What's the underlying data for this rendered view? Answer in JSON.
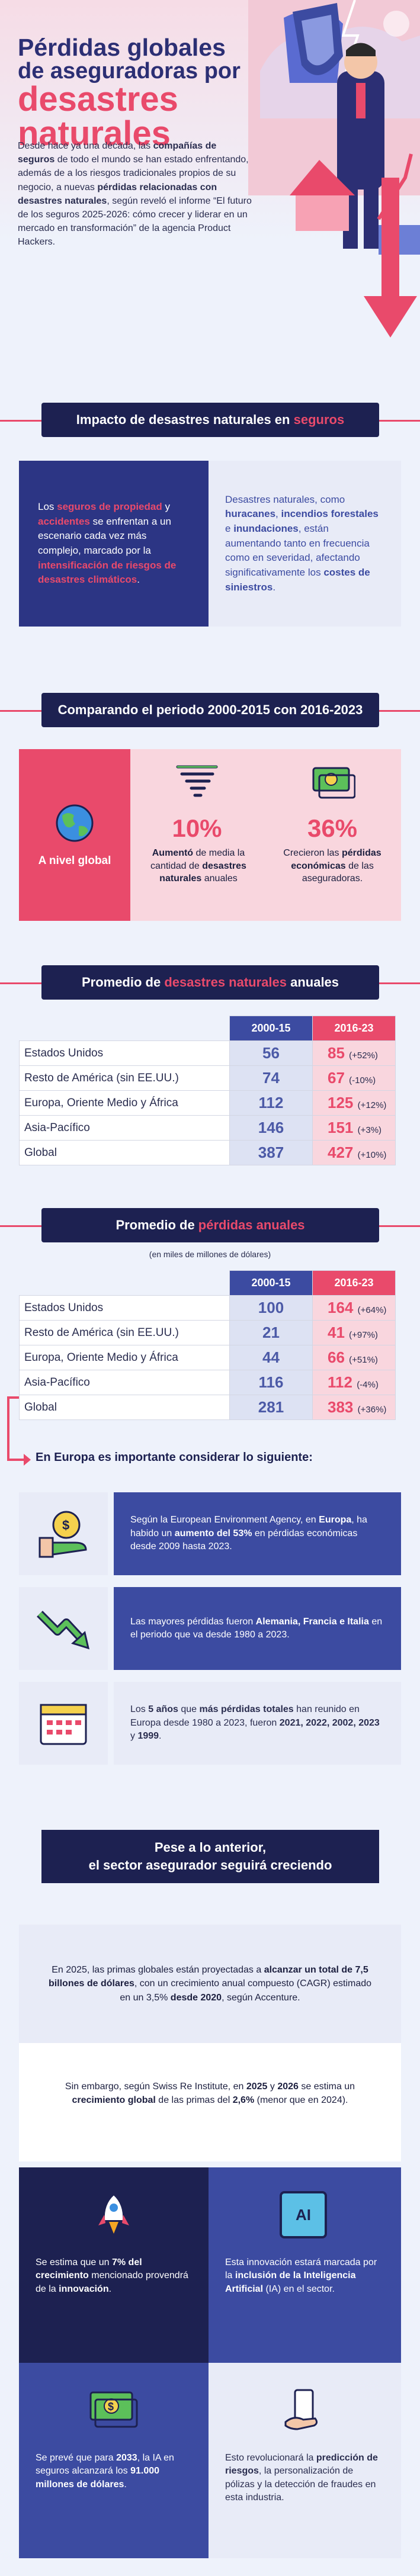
{
  "hero": {
    "title_line1": "Pérdidas globales",
    "title_line2": "de aseguradoras por",
    "title_line3": "desastres",
    "title_line4": "naturales",
    "intro": [
      {
        "t": "Desde hace ya una década, las ",
        "b": false
      },
      {
        "t": "compañías de seguros",
        "b": true
      },
      {
        "t": " de todo el mundo se han estado enfrentando, además de a los riesgos tradicionales propios de su negocio, a nuevas ",
        "b": false
      },
      {
        "t": "pérdidas relacionadas con desastres naturales",
        "b": true
      },
      {
        "t": ", según reveló el informe “El futuro de los seguros 2025-2026: cómo crecer y liderar en un mercado en transformación” de la agencia Product Hackers.",
        "b": false
      }
    ]
  },
  "impact": {
    "header_plain": "Impacto de desastres naturales en ",
    "header_accent": "seguros",
    "left": [
      {
        "t": "Los ",
        "s": ""
      },
      {
        "t": "seguros de propiedad",
        "s": "pk"
      },
      {
        "t": " y ",
        "s": ""
      },
      {
        "t": "accidentes",
        "s": "pk"
      },
      {
        "t": " se enfrentan a un escenario cada vez más complejo, marcado por la ",
        "s": ""
      },
      {
        "t": "intensificación de riesgos de desastres climáticos",
        "s": "pk"
      },
      {
        "t": ".",
        "s": ""
      }
    ],
    "right": [
      {
        "t": "Desastres naturales, como ",
        "s": ""
      },
      {
        "t": "huracanes",
        "s": "b"
      },
      {
        "t": ", ",
        "s": ""
      },
      {
        "t": "incendios forestales",
        "s": "b"
      },
      {
        "t": " e ",
        "s": ""
      },
      {
        "t": "inundaciones",
        "s": "b"
      },
      {
        "t": ", están aumentando tanto en frecuencia como en severidad, afectando significativamente los ",
        "s": ""
      },
      {
        "t": "costes de siniestros",
        "s": "b"
      },
      {
        "t": ".",
        "s": ""
      }
    ]
  },
  "compare": {
    "header": "Comparando el periodo 2000-2015 con 2016-2023",
    "global_label": "A nivel global",
    "stat1_value": "10%",
    "stat1_text_b": "Aumentó",
    "stat1_text": " de media la cantidad de ",
    "stat1_text_b2": "desastres naturales",
    "stat1_text2": " anuales",
    "stat2_value": "36%",
    "stat2_text": "Crecieron las ",
    "stat2_text_b": "pérdidas económicas",
    "stat2_text2": " de las aseguradoras."
  },
  "disasters": {
    "header_plain": "Promedio de ",
    "header_accent": "desastres naturales",
    "header_plain2": " anuales",
    "col1": "2000-15",
    "col2": "2016-23",
    "rows": [
      {
        "region": "Estados Unidos",
        "v1": "56",
        "v2": "85",
        "chg": "(+52%)"
      },
      {
        "region": "Resto de América (sin EE.UU.)",
        "v1": "74",
        "v2": "67",
        "chg": "(-10%)"
      },
      {
        "region": "Europa, Oriente Medio y África",
        "v1": "112",
        "v2": "125",
        "chg": "(+12%)"
      },
      {
        "region": "Asia-Pacífico",
        "v1": "146",
        "v2": "151",
        "chg": "(+3%)"
      },
      {
        "region": "Global",
        "v1": "387",
        "v2": "427",
        "chg": "(+10%)"
      }
    ]
  },
  "losses": {
    "header_plain": "Promedio de ",
    "header_accent": "pérdidas anuales",
    "subtitle": "(en miles de millones de dólares)",
    "col1": "2000-15",
    "col2": "2016-23",
    "rows": [
      {
        "region": "Estados Unidos",
        "v1": "100",
        "v2": "164",
        "chg": "(+64%)"
      },
      {
        "region": "Resto de América (sin EE.UU.)",
        "v1": "21",
        "v2": "41",
        "chg": "(+97%)"
      },
      {
        "region": "Europa, Oriente Medio y África",
        "v1": "44",
        "v2": "66",
        "chg": "(+51%)"
      },
      {
        "region": "Asia-Pacífico",
        "v1": "116",
        "v2": "112",
        "chg": "(-4%)"
      },
      {
        "region": "Global",
        "v1": "281",
        "v2": "383",
        "chg": "(+36%)"
      }
    ]
  },
  "europe": {
    "header": "En Europa es importante considerar lo siguiente:",
    "items": [
      {
        "parts": [
          {
            "t": "Según la European Environment Agency, en ",
            "b": false
          },
          {
            "t": "Europa",
            "b": true
          },
          {
            "t": ", ha habido un ",
            "b": false
          },
          {
            "t": "aumento del 53%",
            "b": true
          },
          {
            "t": " en pérdidas económicas desde 2009 hasta 2023.",
            "b": false
          }
        ]
      },
      {
        "parts": [
          {
            "t": "Las mayores pérdidas fueron ",
            "b": false
          },
          {
            "t": "Alemania, Francia e Italia",
            "b": true
          },
          {
            "t": " en el periodo que va desde 1980 a 2023.",
            "b": false
          }
        ]
      },
      {
        "parts": [
          {
            "t": "Los ",
            "b": false
          },
          {
            "t": "5 años",
            "b": true
          },
          {
            "t": " que ",
            "b": false
          },
          {
            "t": "más pérdidas totales",
            "b": true
          },
          {
            "t": " han reunido en Europa desde 1980 a 2023, fueron ",
            "b": false
          },
          {
            "t": "2021, 2022, 2002, 2023",
            "b": true
          },
          {
            "t": " y ",
            "b": false
          },
          {
            "t": "1999",
            "b": true
          },
          {
            "t": ".",
            "b": false
          }
        ]
      }
    ]
  },
  "future": {
    "header_line1": "Pese a lo anterior,",
    "header_line2": "el sector asegurador seguirá creciendo",
    "p1": [
      {
        "t": "En 2025, las primas globales están proyectadas a ",
        "b": false
      },
      {
        "t": "alcanzar un total de 7,5 billones de dólares",
        "b": true
      },
      {
        "t": ", con un crecimiento anual compuesto (CAGR) estimado en un 3,5% ",
        "b": false
      },
      {
        "t": "desde 2020",
        "b": true
      },
      {
        "t": ", según Accenture.",
        "b": false
      }
    ],
    "p2": [
      {
        "t": "Sin embargo, según Swiss Re Institute, en ",
        "b": false
      },
      {
        "t": "2025",
        "b": true
      },
      {
        "t": " y ",
        "b": false
      },
      {
        "t": "2026",
        "b": true
      },
      {
        "t": " se estima un ",
        "b": false
      },
      {
        "t": "crecimiento global",
        "b": true
      },
      {
        "t": " de las primas del ",
        "b": false
      },
      {
        "t": "2,6%",
        "b": true
      },
      {
        "t": " (menor que en 2024).",
        "b": false
      }
    ],
    "c1": [
      {
        "t": "Se estima que un ",
        "b": false
      },
      {
        "t": "7% del crecimiento",
        "b": true
      },
      {
        "t": " mencionado provendrá de la ",
        "b": false
      },
      {
        "t": "innovación",
        "b": true
      },
      {
        "t": ".",
        "b": false
      }
    ],
    "c2": [
      {
        "t": "Esta innovación estará marcada por la ",
        "b": false
      },
      {
        "t": "inclusión de la Inteligencia Artificial",
        "b": true
      },
      {
        "t": " (IA) en el sector.",
        "b": false
      }
    ],
    "c3": [
      {
        "t": "Se prevé que para ",
        "b": false
      },
      {
        "t": "2033",
        "b": true
      },
      {
        "t": ", la IA en seguros alcanzará los ",
        "b": false
      },
      {
        "t": "91.000 millones de dólares",
        "b": true
      },
      {
        "t": ".",
        "b": false
      }
    ],
    "c4": [
      {
        "t": "Esto revolucionará la ",
        "b": false
      },
      {
        "t": "predicción de riesgos",
        "b": true
      },
      {
        "t": ", la personalización de pólizas y la detección de fraudes en esta industria.",
        "b": false
      }
    ],
    "ai_icon_label": "AI"
  },
  "colors": {
    "navy": "#1d2151",
    "blue": "#2c3584",
    "pink": "#e94a6b",
    "light": "#e8ebf7"
  }
}
